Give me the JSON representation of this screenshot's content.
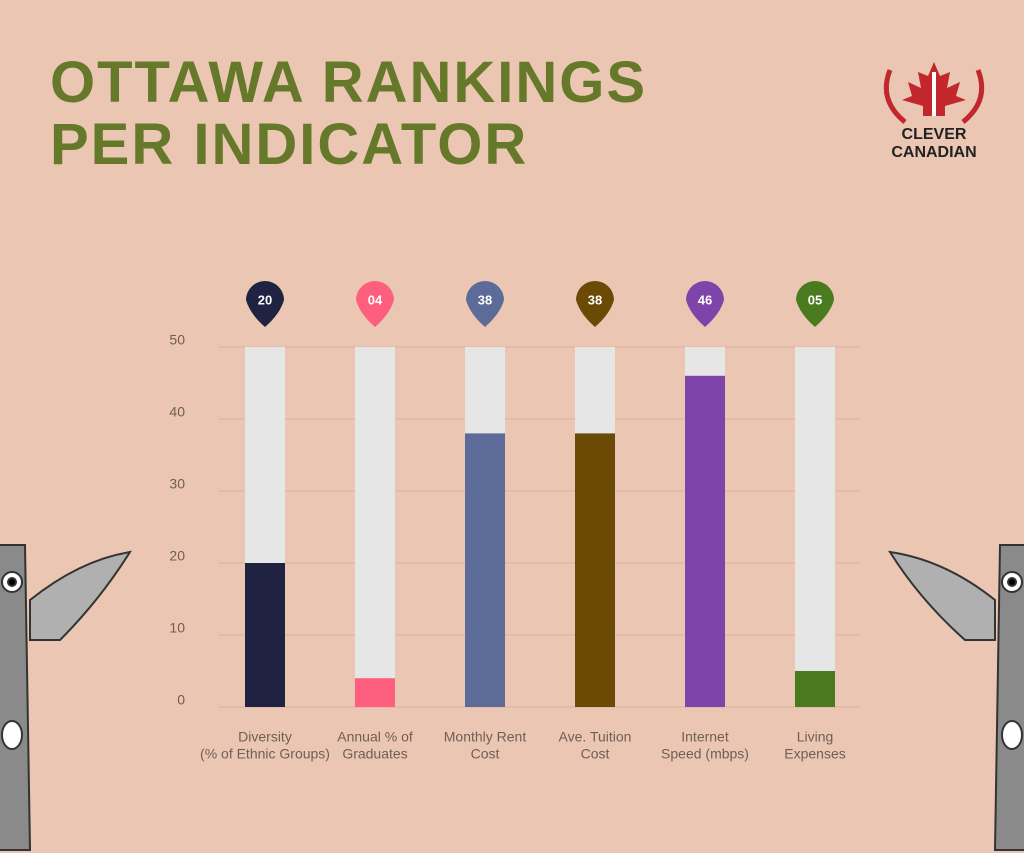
{
  "chart_data": {
    "type": "bar",
    "title": "OTTAWA RANKINGS PER INDICATOR",
    "categories": [
      [
        "Diversity",
        "(% of Ethnic Groups)"
      ],
      [
        "Annual % of",
        "Graduates"
      ],
      [
        "Monthly Rent",
        "Cost"
      ],
      [
        "Ave. Tuition",
        "Cost"
      ],
      [
        "Internet",
        "Speed (mbps)"
      ],
      [
        "Living",
        "Expenses"
      ]
    ],
    "values": [
      20,
      4,
      38,
      38,
      46,
      5
    ],
    "value_labels": [
      "20",
      "04",
      "38",
      "38",
      "46",
      "05"
    ],
    "colors": [
      "#1f2241",
      "#ff5f7e",
      "#5c6b97",
      "#6b4a05",
      "#7f44a9",
      "#4b7b1f"
    ],
    "track_color": "#e6e6e6",
    "ylim": [
      0,
      50
    ],
    "yticks": [
      0,
      10,
      20,
      30,
      40,
      50
    ],
    "grid": true
  },
  "logo": [
    "CLEVER",
    "CANADIAN"
  ]
}
